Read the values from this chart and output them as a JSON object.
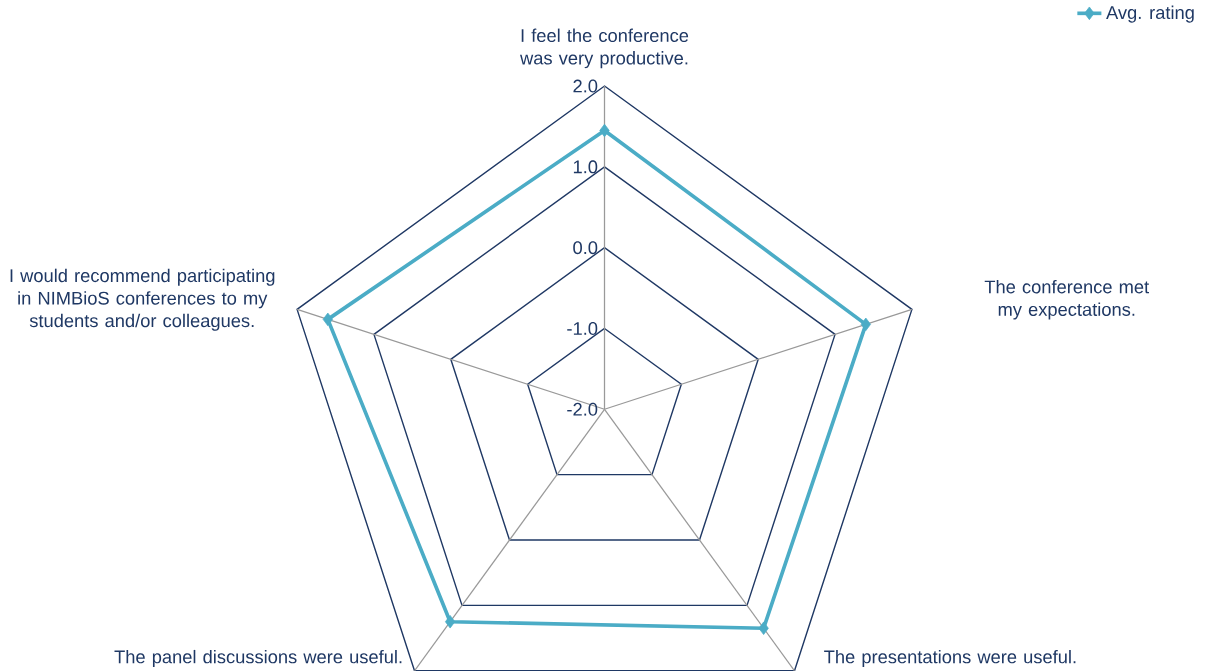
{
  "chart_data": {
    "type": "radar",
    "categories": [
      "I feel the conference was very productive.",
      "The conference met my expectations.",
      "The presentations were useful.",
      "The panel discussions were useful.",
      "I would recommend participating in NIMBioS conferences to my students and/or colleagues."
    ],
    "series": [
      {
        "name": "Avg. rating",
        "color": "#4bacc6",
        "values": [
          1.45,
          1.4,
          1.35,
          1.25,
          1.6
        ]
      }
    ],
    "ylim": [
      -2,
      2
    ],
    "yticks": [
      {
        "value": -2,
        "label": "-2.0"
      },
      {
        "value": -1,
        "label": "-1.0"
      },
      {
        "value": 0,
        "label": "0.0"
      },
      {
        "value": 1,
        "label": "1.0"
      },
      {
        "value": 2,
        "label": "2.0"
      }
    ],
    "grid": true,
    "legend": "top right",
    "marker": "diamond"
  }
}
